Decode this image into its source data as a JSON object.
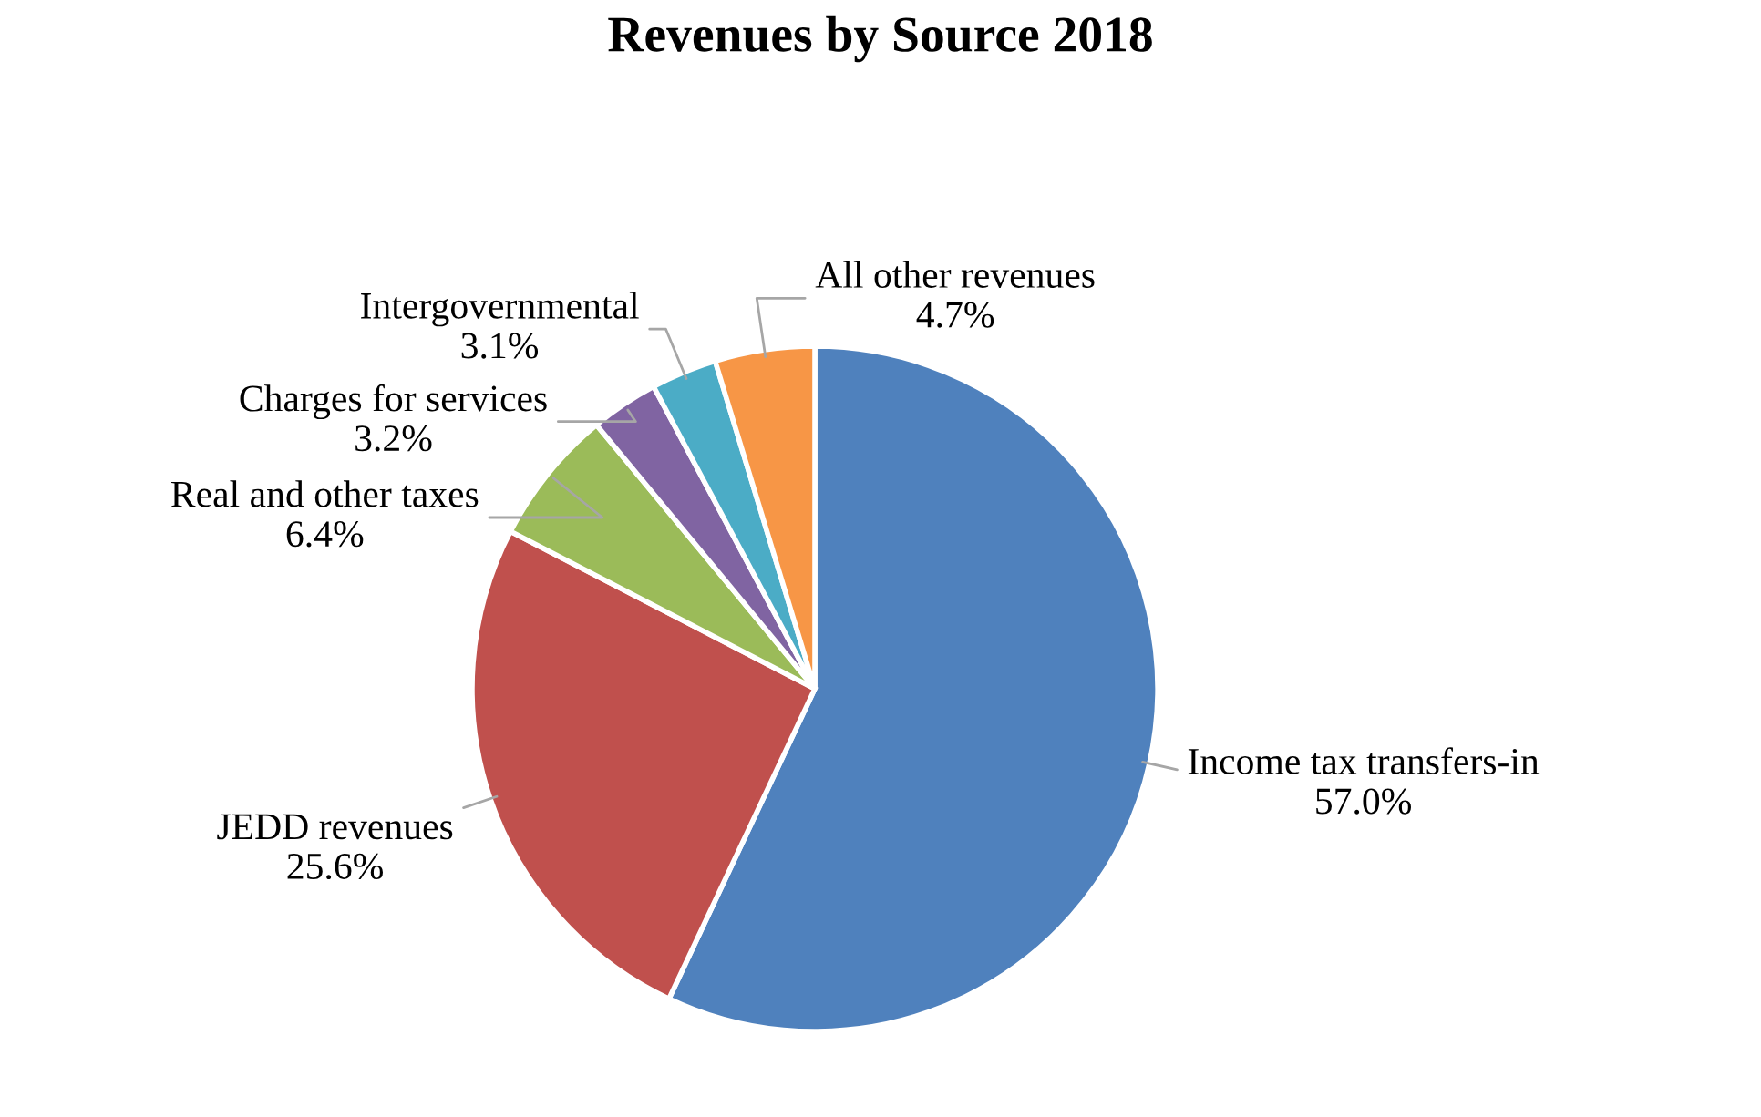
{
  "chart_data": {
    "type": "pie",
    "title": "Revenues by Source 2018",
    "categories": [
      "Income tax transfers-in",
      "JEDD revenues",
      "Real and other taxes",
      "Charges for services",
      "Intergovernmental",
      "All other revenues"
    ],
    "values": [
      57.0,
      25.6,
      6.4,
      3.2,
      3.1,
      4.7
    ],
    "value_labels": [
      "57.0%",
      "25.6%",
      "6.4%",
      "3.2%",
      "3.1%",
      "4.7%"
    ],
    "colors": [
      "#4f81bd",
      "#c0504d",
      "#9bbb59",
      "#8064a2",
      "#4bacc6",
      "#f79646"
    ],
    "legend": false
  }
}
